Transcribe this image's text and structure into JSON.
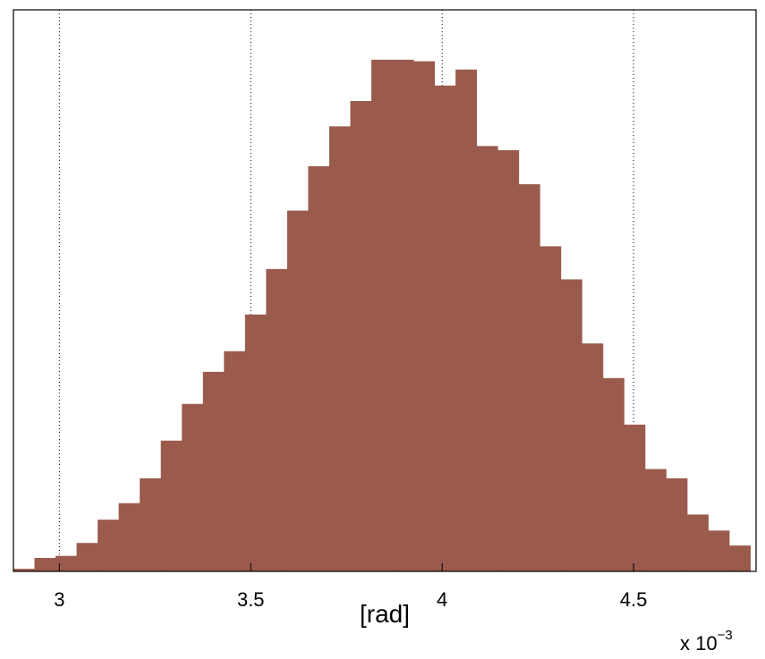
{
  "chart_data": {
    "type": "bar",
    "subtype": "histogram",
    "xlabel": "[rad]",
    "x_multiplier_label": "x 10",
    "x_multiplier_exponent": "−3",
    "xlim": [
      2.88,
      4.82
    ],
    "ylim": [
      0,
      1.0
    ],
    "x_ticks": [
      3,
      3.5,
      4,
      4.5
    ],
    "x_tick_labels": [
      "3",
      "3.5",
      "4",
      "4.5"
    ],
    "y_ticks_visible": false,
    "grid": "vertical-dotted",
    "bar_color": "#9a5b4d",
    "bin_width": 0.055,
    "bin_starts": [
      2.88,
      2.935,
      2.99,
      3.045,
      3.1,
      3.155,
      3.21,
      3.265,
      3.32,
      3.375,
      3.43,
      3.485,
      3.54,
      3.595,
      3.65,
      3.705,
      3.76,
      3.815,
      3.87,
      3.925,
      3.98,
      4.035,
      4.09,
      4.145,
      4.2,
      4.255,
      4.31,
      4.365,
      4.42,
      4.475,
      4.53,
      4.585,
      4.64,
      4.695,
      4.75
    ],
    "values": [
      0.005,
      0.026,
      0.03,
      0.055,
      0.1,
      0.132,
      0.18,
      0.253,
      0.324,
      0.386,
      0.426,
      0.497,
      0.585,
      0.698,
      0.784,
      0.861,
      0.91,
      0.99,
      0.99,
      0.987,
      0.94,
      0.971,
      0.823,
      0.815,
      0.749,
      0.629,
      0.565,
      0.441,
      0.374,
      0.284,
      0.198,
      0.18,
      0.11,
      0.079,
      0.05
    ]
  }
}
